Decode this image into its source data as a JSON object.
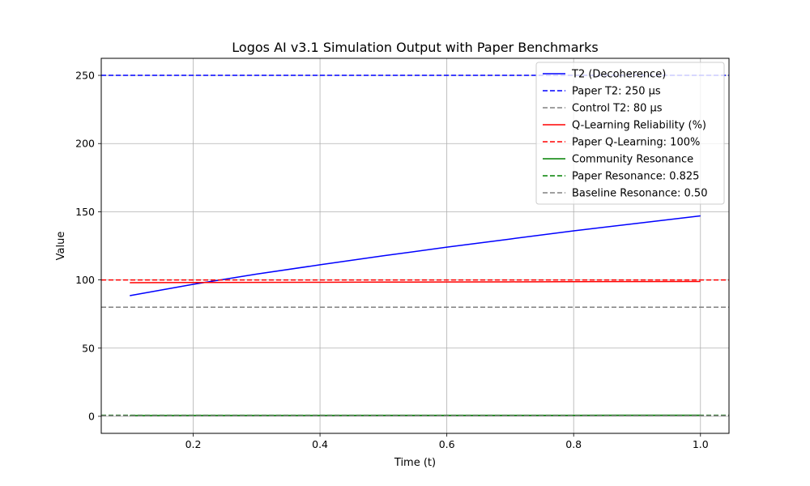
{
  "chart_data": {
    "type": "line",
    "title": "Logos AI v3.1 Simulation Output with Paper Benchmarks",
    "xlabel": "Time (t)",
    "ylabel": "Value",
    "xlim": [
      0.055,
      1.045
    ],
    "ylim": [
      -12.5,
      262.5
    ],
    "xticks": [
      0.2,
      0.4,
      0.6,
      0.8,
      1.0
    ],
    "xtick_labels": [
      "0.2",
      "0.4",
      "0.6",
      "0.8",
      "1.0"
    ],
    "yticks": [
      0,
      50,
      100,
      150,
      200,
      250
    ],
    "ytick_labels": [
      "0",
      "50",
      "100",
      "150",
      "200",
      "250"
    ],
    "grid": true,
    "legend_position": "top-right",
    "series": [
      {
        "name": "T2 (Decoherence)",
        "kind": "line",
        "color": "#0000ff",
        "dashed": false,
        "x": [
          0.1,
          0.2,
          0.3,
          0.4,
          0.5,
          0.6,
          0.7,
          0.8,
          0.9,
          1.0
        ],
        "y": [
          88.5,
          96.8,
          104.3,
          111.1,
          117.7,
          124.0,
          130.0,
          136.0,
          141.5,
          147.0
        ]
      },
      {
        "name": "Paper T2: 250 µs",
        "kind": "hline",
        "color": "#0000ff",
        "dashed": true,
        "y": 250
      },
      {
        "name": "Control T2: 80 µs",
        "kind": "hline",
        "color": "#808080",
        "dashed": true,
        "y": 80
      },
      {
        "name": "Q-Learning Reliability (%)",
        "kind": "line",
        "color": "#ff0000",
        "dashed": false,
        "x": [
          0.1,
          0.2,
          0.3,
          0.4,
          0.5,
          0.6,
          0.7,
          0.8,
          0.9,
          1.0
        ],
        "y": [
          98.0,
          98.1,
          98.2,
          98.3,
          98.4,
          98.5,
          98.6,
          98.7,
          98.8,
          98.9
        ]
      },
      {
        "name": "Paper Q-Learning: 100%",
        "kind": "hline",
        "color": "#ff0000",
        "dashed": true,
        "y": 100
      },
      {
        "name": "Community Resonance",
        "kind": "line",
        "color": "#008000",
        "dashed": false,
        "x": [
          0.1,
          0.2,
          0.3,
          0.4,
          0.5,
          0.6,
          0.7,
          0.8,
          0.9,
          1.0
        ],
        "y": [
          0.6,
          0.62,
          0.64,
          0.66,
          0.68,
          0.7,
          0.72,
          0.74,
          0.76,
          0.78
        ]
      },
      {
        "name": "Paper Resonance: 0.825",
        "kind": "hline",
        "color": "#008000",
        "dashed": true,
        "y": 0.825
      },
      {
        "name": "Baseline Resonance: 0.50",
        "kind": "hline",
        "color": "#808080",
        "dashed": true,
        "y": 0.5
      }
    ]
  }
}
